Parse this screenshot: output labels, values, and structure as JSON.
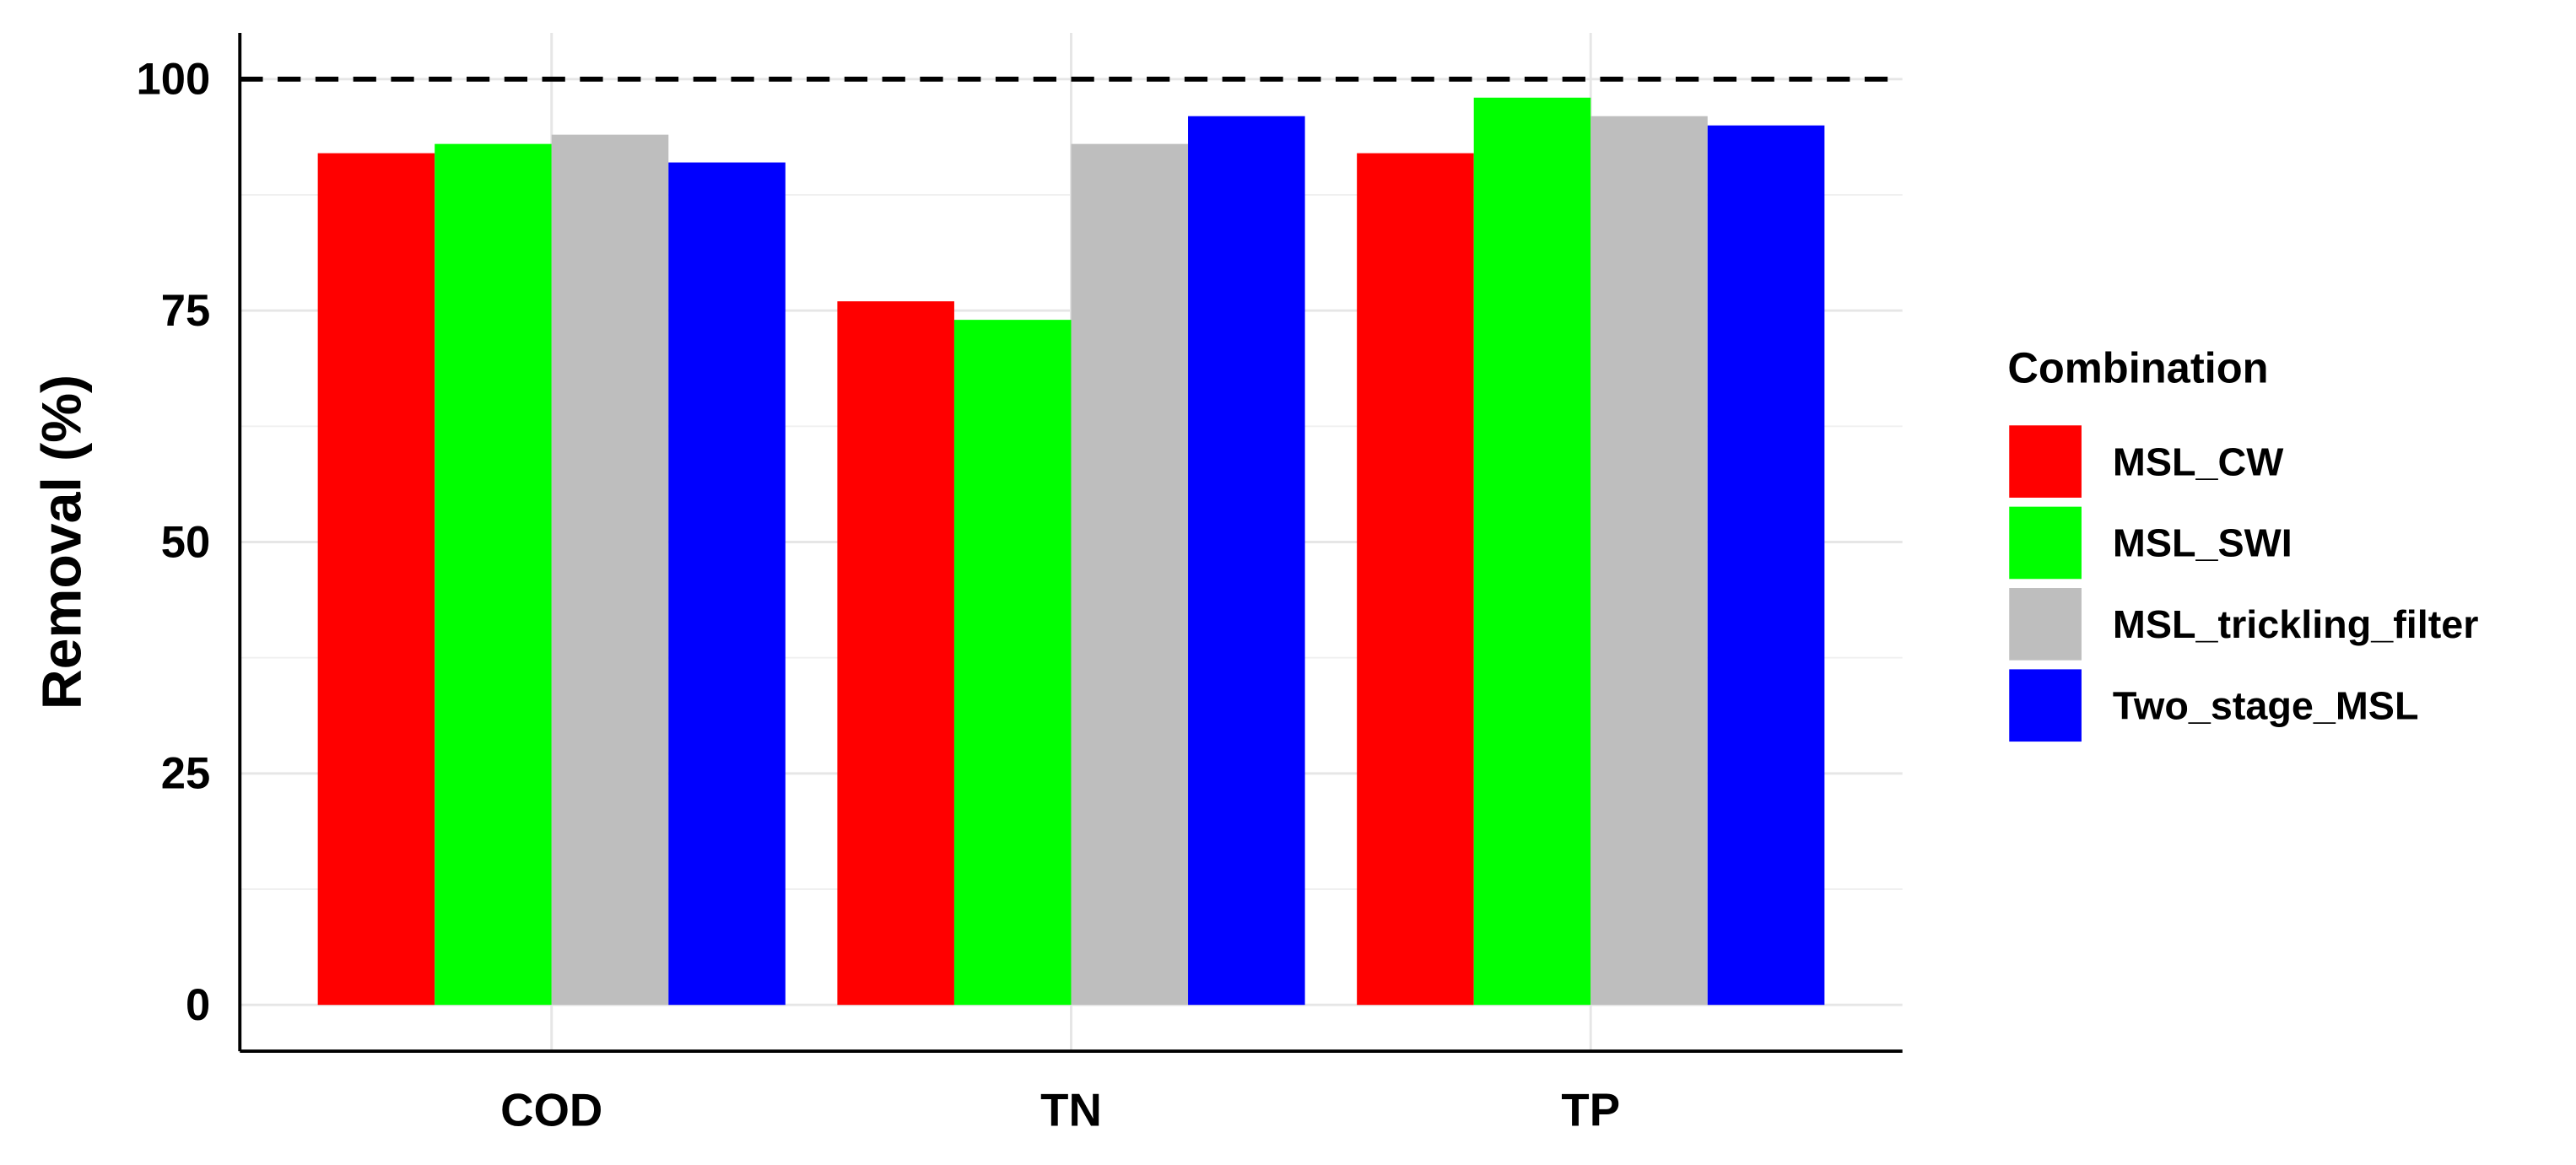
{
  "chart_data": {
    "type": "bar",
    "y_label": "Removal (%)",
    "categories": [
      "COD",
      "TN",
      "TP"
    ],
    "series": [
      {
        "name": "MSL_CW",
        "color": "#ff0000",
        "values": [
          92,
          76,
          92
        ]
      },
      {
        "name": "MSL_SWI",
        "color": "#00ff00",
        "values": [
          93,
          74,
          98
        ]
      },
      {
        "name": "MSL_trickling_filter",
        "color": "#bebebe",
        "values": [
          94,
          93,
          96
        ]
      },
      {
        "name": "Two_stage_MSL",
        "color": "#0000ff",
        "values": [
          91,
          96,
          95
        ]
      }
    ],
    "legend_title": "Combination",
    "legend": "right",
    "reference_line": 100,
    "ylim": [
      -5,
      105
    ],
    "yticks": [
      0,
      25,
      50,
      75,
      100
    ],
    "grid": true
  }
}
